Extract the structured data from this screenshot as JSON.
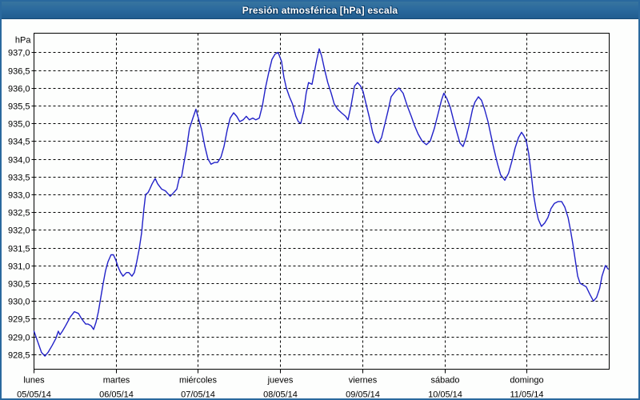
{
  "window": {
    "title": "Presión atmosférica [hPa] escala"
  },
  "chart_data": {
    "type": "line",
    "title": "Presión atmosférica [hPa] escala",
    "legend": "none",
    "grid": {
      "horizontal": "dashed",
      "vertical": "dashed-per-day"
    },
    "line_color": "#2121c8",
    "y_axis": {
      "unit_label": "hPa",
      "range": [
        928.08,
        937.54
      ],
      "tick_step": 0.5,
      "ticks": [
        {
          "value": 937.0,
          "label": "937,0"
        },
        {
          "value": 936.5,
          "label": "936,5"
        },
        {
          "value": 936.0,
          "label": "936,0"
        },
        {
          "value": 935.5,
          "label": "935,5"
        },
        {
          "value": 935.0,
          "label": "935,0"
        },
        {
          "value": 934.5,
          "label": "934,5"
        },
        {
          "value": 934.0,
          "label": "934,0"
        },
        {
          "value": 933.5,
          "label": "933,5"
        },
        {
          "value": 933.0,
          "label": "933,0"
        },
        {
          "value": 932.5,
          "label": "932,5"
        },
        {
          "value": 932.0,
          "label": "932,0"
        },
        {
          "value": 931.5,
          "label": "931,5"
        },
        {
          "value": 931.0,
          "label": "931,0"
        },
        {
          "value": 930.5,
          "label": "930,5"
        },
        {
          "value": 930.0,
          "label": "930,0"
        },
        {
          "value": 929.5,
          "label": "929,5"
        },
        {
          "value": 929.0,
          "label": "929,0"
        },
        {
          "value": 928.5,
          "label": "928,5"
        }
      ]
    },
    "x_axis": {
      "hours_total": 168,
      "days": [
        {
          "name": "lunes",
          "date": "05/05/14"
        },
        {
          "name": "martes",
          "date": "06/05/14"
        },
        {
          "name": "miércoles",
          "date": "07/05/14"
        },
        {
          "name": "jueves",
          "date": "08/05/14"
        },
        {
          "name": "viernes",
          "date": "09/05/14"
        },
        {
          "name": "sábado",
          "date": "10/05/14"
        },
        {
          "name": "domingo",
          "date": "11/05/14"
        }
      ]
    },
    "series": [
      {
        "name": "Presión atmosférica",
        "color": "#2121c8",
        "points": [
          [
            0,
            929.15
          ],
          [
            1.1,
            928.85
          ],
          [
            2.2,
            928.55
          ],
          [
            3.2,
            928.45
          ],
          [
            4.1,
            928.55
          ],
          [
            5.3,
            928.75
          ],
          [
            6.4,
            928.95
          ],
          [
            7.1,
            929.15
          ],
          [
            7.6,
            929.05
          ],
          [
            8.3,
            929.15
          ],
          [
            9.2,
            929.3
          ],
          [
            10.6,
            929.55
          ],
          [
            11.8,
            929.7
          ],
          [
            13,
            929.65
          ],
          [
            13.9,
            929.5
          ],
          [
            15.1,
            929.35
          ],
          [
            15.8,
            929.35
          ],
          [
            16.7,
            929.3
          ],
          [
            17.4,
            929.2
          ],
          [
            18.1,
            929.4
          ],
          [
            18.8,
            929.7
          ],
          [
            19.5,
            930.1
          ],
          [
            20.2,
            930.5
          ],
          [
            20.9,
            930.85
          ],
          [
            21.6,
            931.1
          ],
          [
            22.5,
            931.3
          ],
          [
            23.2,
            931.3
          ],
          [
            23.9,
            931.15
          ],
          [
            24.6,
            930.95
          ],
          [
            25.3,
            930.8
          ],
          [
            26,
            930.7
          ],
          [
            27,
            930.8
          ],
          [
            27.7,
            930.8
          ],
          [
            28.6,
            930.7
          ],
          [
            29.3,
            930.8
          ],
          [
            30,
            931.1
          ],
          [
            30.7,
            931.45
          ],
          [
            31.4,
            931.9
          ],
          [
            32.1,
            932.6
          ],
          [
            32.6,
            933
          ],
          [
            33.3,
            933.05
          ],
          [
            33.8,
            933.15
          ],
          [
            34.5,
            933.3
          ],
          [
            35.4,
            933.45
          ],
          [
            36.1,
            933.3
          ],
          [
            37.3,
            933.15
          ],
          [
            38.4,
            933.1
          ],
          [
            39.8,
            932.95
          ],
          [
            40.8,
            933.05
          ],
          [
            41.7,
            933.15
          ],
          [
            42.4,
            933.45
          ],
          [
            43.1,
            933.5
          ],
          [
            43.8,
            933.9
          ],
          [
            44.5,
            934.25
          ],
          [
            45.4,
            934.85
          ],
          [
            46.4,
            935.15
          ],
          [
            47.3,
            935.4
          ],
          [
            48,
            935.15
          ],
          [
            48.9,
            934.85
          ],
          [
            49.9,
            934.35
          ],
          [
            50.8,
            934
          ],
          [
            51.7,
            933.85
          ],
          [
            52.7,
            933.9
          ],
          [
            53.6,
            933.9
          ],
          [
            54.6,
            934.05
          ],
          [
            55.5,
            934.35
          ],
          [
            56.4,
            934.8
          ],
          [
            57.3,
            935.15
          ],
          [
            58.3,
            935.3
          ],
          [
            59.2,
            935.2
          ],
          [
            60.1,
            935.05
          ],
          [
            61.1,
            935.1
          ],
          [
            62,
            935.2
          ],
          [
            62.9,
            935.1
          ],
          [
            63.9,
            935.15
          ],
          [
            64.8,
            935.1
          ],
          [
            65.8,
            935.15
          ],
          [
            66.7,
            935.5
          ],
          [
            67.6,
            936
          ],
          [
            68.6,
            936.45
          ],
          [
            69.5,
            936.8
          ],
          [
            70.4,
            936.95
          ],
          [
            71.3,
            937
          ],
          [
            72.3,
            936.75
          ],
          [
            73,
            936.3
          ],
          [
            73.7,
            936
          ],
          [
            74.6,
            935.75
          ],
          [
            75.5,
            935.55
          ],
          [
            76.5,
            935.2
          ],
          [
            77.2,
            935.05
          ],
          [
            77.9,
            935
          ],
          [
            78.8,
            935.35
          ],
          [
            79.5,
            935.85
          ],
          [
            80.2,
            936.15
          ],
          [
            81.2,
            936.1
          ],
          [
            81.9,
            936.45
          ],
          [
            82.6,
            936.8
          ],
          [
            83.3,
            937.1
          ],
          [
            84,
            936.9
          ],
          [
            84.9,
            936.5
          ],
          [
            85.8,
            936.15
          ],
          [
            86.8,
            935.85
          ],
          [
            87.7,
            935.55
          ],
          [
            88.7,
            935.4
          ],
          [
            89.8,
            935.3
          ],
          [
            91,
            935.2
          ],
          [
            91.7,
            935.1
          ],
          [
            92.6,
            935.5
          ],
          [
            93.6,
            936.05
          ],
          [
            94.5,
            936.15
          ],
          [
            95.4,
            936.05
          ],
          [
            96.1,
            935.9
          ],
          [
            97,
            935.55
          ],
          [
            98,
            935.15
          ],
          [
            98.9,
            934.75
          ],
          [
            99.8,
            934.5
          ],
          [
            100.6,
            934.45
          ],
          [
            101.5,
            934.6
          ],
          [
            102.4,
            934.95
          ],
          [
            103.4,
            935.35
          ],
          [
            104.3,
            935.75
          ],
          [
            105.5,
            935.9
          ],
          [
            106.6,
            936
          ],
          [
            107.8,
            935.85
          ],
          [
            109,
            935.5
          ],
          [
            110.2,
            935.2
          ],
          [
            111.1,
            934.95
          ],
          [
            112.2,
            934.7
          ],
          [
            113.4,
            934.5
          ],
          [
            114.6,
            934.4
          ],
          [
            115.7,
            934.5
          ],
          [
            116.9,
            934.85
          ],
          [
            118.1,
            935.3
          ],
          [
            119,
            935.65
          ],
          [
            119.7,
            935.85
          ],
          [
            120.6,
            935.7
          ],
          [
            121.6,
            935.45
          ],
          [
            122.5,
            935.1
          ],
          [
            123.5,
            934.75
          ],
          [
            124.4,
            934.45
          ],
          [
            125.3,
            934.35
          ],
          [
            126.2,
            934.6
          ],
          [
            127.2,
            935
          ],
          [
            128.1,
            935.4
          ],
          [
            128.8,
            935.6
          ],
          [
            129.8,
            935.75
          ],
          [
            130.7,
            935.65
          ],
          [
            131.6,
            935.4
          ],
          [
            132.6,
            935.05
          ],
          [
            133.5,
            934.65
          ],
          [
            134.4,
            934.25
          ],
          [
            135.4,
            933.85
          ],
          [
            136.3,
            933.55
          ],
          [
            137.5,
            933.4
          ],
          [
            138.6,
            933.6
          ],
          [
            139.6,
            933.95
          ],
          [
            140.5,
            934.3
          ],
          [
            141.5,
            934.6
          ],
          [
            142.4,
            934.75
          ],
          [
            143.1,
            934.65
          ],
          [
            143.8,
            934.5
          ],
          [
            144.5,
            934.15
          ],
          [
            145.2,
            933.6
          ],
          [
            145.9,
            933
          ],
          [
            146.6,
            932.6
          ],
          [
            147.3,
            932.3
          ],
          [
            148.2,
            932.1
          ],
          [
            149.2,
            932.2
          ],
          [
            150.1,
            932.35
          ],
          [
            151,
            932.6
          ],
          [
            152,
            932.75
          ],
          [
            153.1,
            932.8
          ],
          [
            154.1,
            932.8
          ],
          [
            155,
            932.65
          ],
          [
            156,
            932.35
          ],
          [
            156.7,
            932
          ],
          [
            157.4,
            931.6
          ],
          [
            158.1,
            931.15
          ],
          [
            158.8,
            930.7
          ],
          [
            159.5,
            930.5
          ],
          [
            160.4,
            930.45
          ],
          [
            161.3,
            930.4
          ],
          [
            162.3,
            930.2
          ],
          [
            163.4,
            930
          ],
          [
            164.3,
            930.1
          ],
          [
            165.2,
            930.35
          ],
          [
            165.9,
            930.7
          ],
          [
            166.9,
            931
          ],
          [
            167.7,
            930.9
          ]
        ]
      }
    ]
  }
}
